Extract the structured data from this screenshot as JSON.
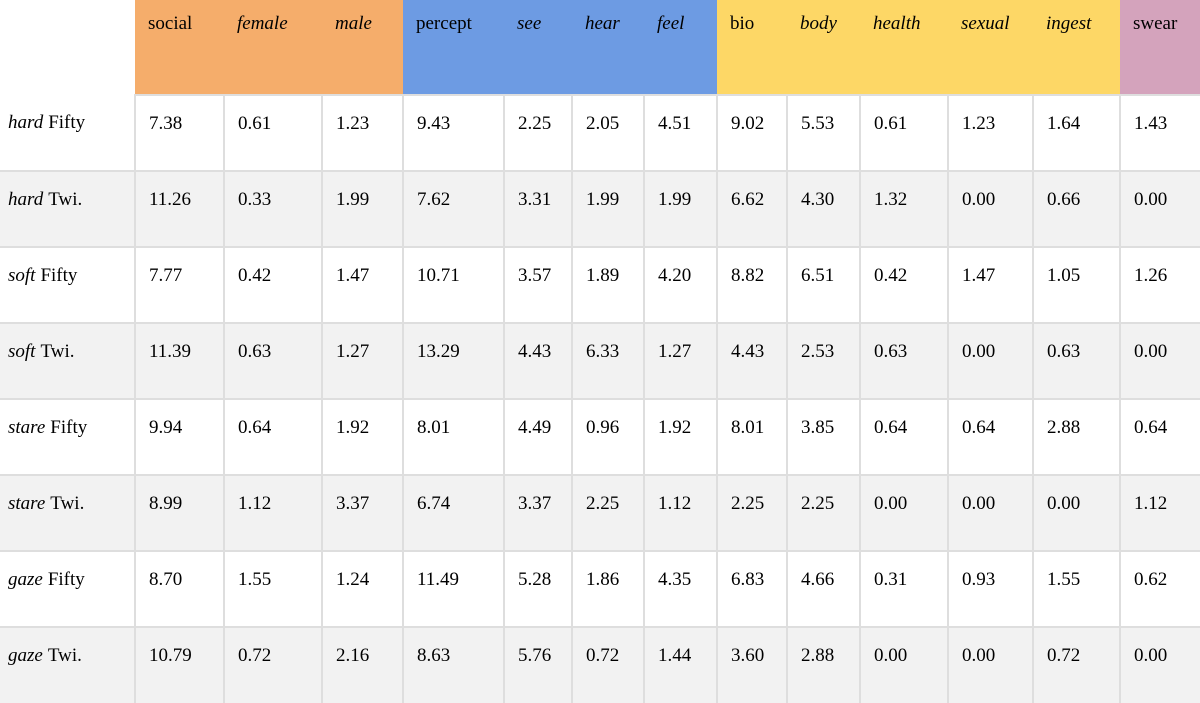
{
  "chart_data": {
    "type": "table",
    "description": "Word-category frequency table: rows are condition/source pairs, columns are LIWC-style categories grouped by color.",
    "groups": [
      {
        "name": "social-group",
        "color": "#F5AD6B"
      },
      {
        "name": "percept-group",
        "color": "#6D9BE3"
      },
      {
        "name": "bio-group",
        "color": "#FDD766"
      },
      {
        "name": "swear-group",
        "color": "#D4A3BC"
      }
    ],
    "columns": [
      {
        "label": "social",
        "italic": false,
        "group": 0
      },
      {
        "label": "female",
        "italic": true,
        "group": 0
      },
      {
        "label": "male",
        "italic": true,
        "group": 0
      },
      {
        "label": "percept",
        "italic": false,
        "group": 1
      },
      {
        "label": "see",
        "italic": true,
        "group": 1
      },
      {
        "label": "hear",
        "italic": true,
        "group": 1
      },
      {
        "label": "feel",
        "italic": true,
        "group": 1
      },
      {
        "label": "bio",
        "italic": false,
        "group": 2
      },
      {
        "label": "body",
        "italic": true,
        "group": 2
      },
      {
        "label": "health",
        "italic": true,
        "group": 2
      },
      {
        "label": "sexual",
        "italic": true,
        "group": 2
      },
      {
        "label": "ingest",
        "italic": true,
        "group": 2
      },
      {
        "label": "swear",
        "italic": false,
        "group": 3
      }
    ],
    "rows": [
      {
        "prefix": "hard",
        "suffix": "Fifty",
        "values": [
          "7.38",
          "0.61",
          "1.23",
          "9.43",
          "2.25",
          "2.05",
          "4.51",
          "9.02",
          "5.53",
          "0.61",
          "1.23",
          "1.64",
          "1.43"
        ]
      },
      {
        "prefix": "hard",
        "suffix": "Twi.",
        "values": [
          "11.26",
          "0.33",
          "1.99",
          "7.62",
          "3.31",
          "1.99",
          "1.99",
          "6.62",
          "4.30",
          "1.32",
          "0.00",
          "0.66",
          "0.00"
        ]
      },
      {
        "prefix": "soft",
        "suffix": "Fifty",
        "values": [
          "7.77",
          "0.42",
          "1.47",
          "10.71",
          "3.57",
          "1.89",
          "4.20",
          "8.82",
          "6.51",
          "0.42",
          "1.47",
          "1.05",
          "1.26"
        ]
      },
      {
        "prefix": "soft",
        "suffix": "Twi.",
        "values": [
          "11.39",
          "0.63",
          "1.27",
          "13.29",
          "4.43",
          "6.33",
          "1.27",
          "4.43",
          "2.53",
          "0.63",
          "0.00",
          "0.63",
          "0.00"
        ]
      },
      {
        "prefix": "stare",
        "suffix": "Fifty",
        "values": [
          "9.94",
          "0.64",
          "1.92",
          "8.01",
          "4.49",
          "0.96",
          "1.92",
          "8.01",
          "3.85",
          "0.64",
          "0.64",
          "2.88",
          "0.64"
        ]
      },
      {
        "prefix": "stare",
        "suffix": "Twi.",
        "values": [
          "8.99",
          "1.12",
          "3.37",
          "6.74",
          "3.37",
          "2.25",
          "1.12",
          "2.25",
          "2.25",
          "0.00",
          "0.00",
          "0.00",
          "1.12"
        ]
      },
      {
        "prefix": "gaze",
        "suffix": "Fifty",
        "values": [
          "8.70",
          "1.55",
          "1.24",
          "11.49",
          "5.28",
          "1.86",
          "4.35",
          "6.83",
          "4.66",
          "0.31",
          "0.93",
          "1.55",
          "0.62"
        ]
      },
      {
        "prefix": "gaze",
        "suffix": "Twi.",
        "values": [
          "10.79",
          "0.72",
          "2.16",
          "8.63",
          "5.76",
          "0.72",
          "1.44",
          "3.60",
          "2.88",
          "0.00",
          "0.00",
          "0.72",
          "0.00"
        ]
      }
    ],
    "style_colors": {
      "stripe_row": "#F2F2F2",
      "grid_line": "#DEDEDE",
      "text": "#000000"
    }
  }
}
